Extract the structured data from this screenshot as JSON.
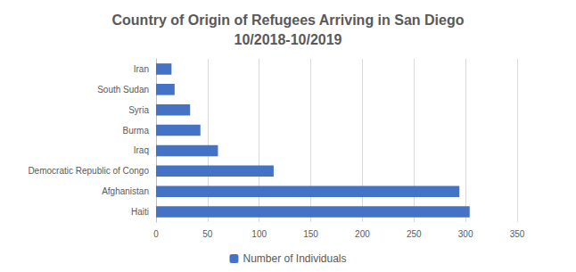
{
  "chart_data": {
    "type": "bar",
    "orientation": "horizontal",
    "title": "Country of Origin of Refugees Arriving in San Diego\n10/2018-10/2019",
    "categories": [
      "Haiti",
      "Afghanistan",
      "Democratic Republic of Congo",
      "Iraq",
      "Burma",
      "Syria",
      "South Sudan",
      "Iran"
    ],
    "series": [
      {
        "name": "Number of Individuals",
        "color": "#4472c4",
        "values": [
          304,
          294,
          114,
          60,
          43,
          33,
          18,
          15
        ]
      }
    ],
    "xlim": [
      0,
      350
    ],
    "xticks": [
      0,
      50,
      100,
      150,
      200,
      250,
      300,
      350
    ],
    "grid": true,
    "legend": "bottom"
  }
}
